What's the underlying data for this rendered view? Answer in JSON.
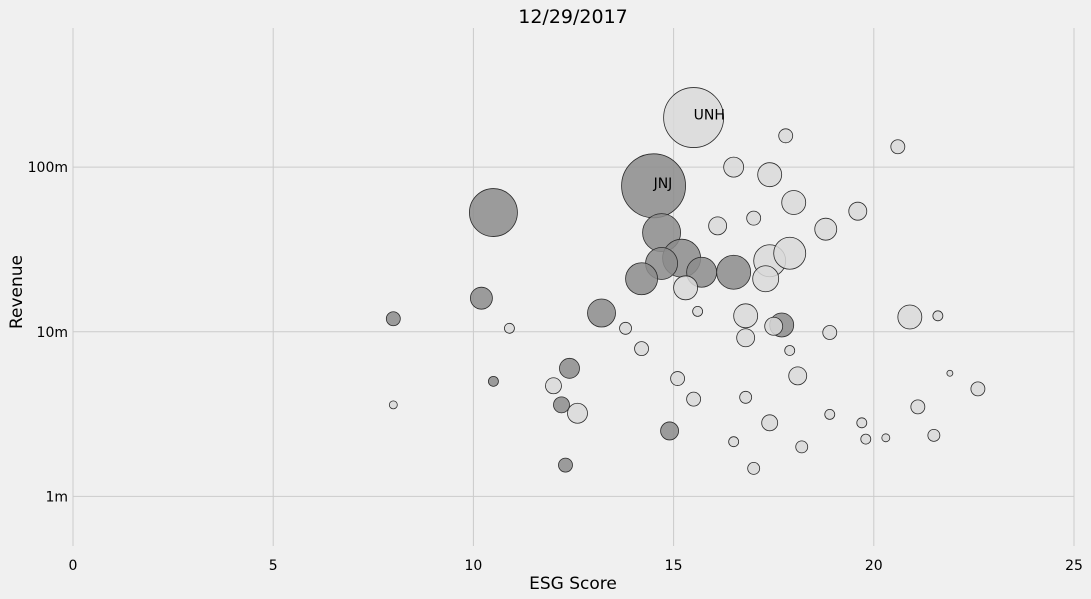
{
  "chart_data": {
    "type": "scatter",
    "title": "12/29/2017",
    "xlabel": "ESG Score",
    "ylabel": "Revenue",
    "xlim": [
      0,
      25
    ],
    "ylim": [
      500000,
      700000000
    ],
    "yscale": "log",
    "grid": true,
    "x_ticks": [
      {
        "value": 0,
        "label": "0"
      },
      {
        "value": 5,
        "label": "5"
      },
      {
        "value": 10,
        "label": "10"
      },
      {
        "value": 15,
        "label": "15"
      },
      {
        "value": 20,
        "label": "20"
      },
      {
        "value": 25,
        "label": "25"
      }
    ],
    "y_ticks": [
      {
        "value": 1000000,
        "label": "1m"
      },
      {
        "value": 10000000,
        "label": "10m"
      },
      {
        "value": 100000000,
        "label": "100m"
      }
    ],
    "colors": {
      "dark": "#8c8c8c",
      "light": "#d9d9d9",
      "background": "#f0f0f0",
      "grid": "#cbcbcb"
    },
    "points": [
      {
        "x": 15.5,
        "y": 200000000,
        "size": 30,
        "tone": "light",
        "label": "UNH"
      },
      {
        "x": 14.5,
        "y": 77000000,
        "size": 32,
        "tone": "dark",
        "label": "JNJ"
      },
      {
        "x": 10.5,
        "y": 53000000,
        "size": 24,
        "tone": "dark"
      },
      {
        "x": 14.7,
        "y": 40000000,
        "size": 19,
        "tone": "dark"
      },
      {
        "x": 15.2,
        "y": 28000000,
        "size": 19,
        "tone": "dark"
      },
      {
        "x": 14.7,
        "y": 26000000,
        "size": 16,
        "tone": "dark"
      },
      {
        "x": 15.7,
        "y": 23000000,
        "size": 15,
        "tone": "dark"
      },
      {
        "x": 16.5,
        "y": 23000000,
        "size": 17,
        "tone": "dark"
      },
      {
        "x": 14.2,
        "y": 21000000,
        "size": 16,
        "tone": "dark"
      },
      {
        "x": 17.4,
        "y": 27000000,
        "size": 16,
        "tone": "light"
      },
      {
        "x": 17.9,
        "y": 30000000,
        "size": 16,
        "tone": "light"
      },
      {
        "x": 17.3,
        "y": 21000000,
        "size": 13,
        "tone": "light"
      },
      {
        "x": 15.3,
        "y": 18500000,
        "size": 12,
        "tone": "light"
      },
      {
        "x": 17.8,
        "y": 155000000,
        "size": 7,
        "tone": "light"
      },
      {
        "x": 20.6,
        "y": 133000000,
        "size": 7,
        "tone": "light"
      },
      {
        "x": 16.5,
        "y": 100000000,
        "size": 10,
        "tone": "light"
      },
      {
        "x": 17.4,
        "y": 90000000,
        "size": 12,
        "tone": "light"
      },
      {
        "x": 18.0,
        "y": 61000000,
        "size": 12,
        "tone": "light"
      },
      {
        "x": 19.6,
        "y": 54000000,
        "size": 9,
        "tone": "light"
      },
      {
        "x": 17.0,
        "y": 49000000,
        "size": 7,
        "tone": "light"
      },
      {
        "x": 16.1,
        "y": 44000000,
        "size": 9,
        "tone": "light"
      },
      {
        "x": 18.8,
        "y": 42000000,
        "size": 11,
        "tone": "light"
      },
      {
        "x": 10.2,
        "y": 16000000,
        "size": 11,
        "tone": "dark"
      },
      {
        "x": 8.0,
        "y": 12000000,
        "size": 7,
        "tone": "dark"
      },
      {
        "x": 10.9,
        "y": 10500000,
        "size": 5,
        "tone": "light"
      },
      {
        "x": 13.2,
        "y": 13000000,
        "size": 14,
        "tone": "dark"
      },
      {
        "x": 13.8,
        "y": 10500000,
        "size": 6,
        "tone": "light"
      },
      {
        "x": 15.6,
        "y": 13300000,
        "size": 5,
        "tone": "light"
      },
      {
        "x": 16.8,
        "y": 12500000,
        "size": 12,
        "tone": "light"
      },
      {
        "x": 17.5,
        "y": 10800000,
        "size": 9,
        "tone": "light"
      },
      {
        "x": 17.7,
        "y": 11000000,
        "size": 12,
        "tone": "dark"
      },
      {
        "x": 16.8,
        "y": 9200000,
        "size": 9,
        "tone": "light"
      },
      {
        "x": 18.9,
        "y": 9900000,
        "size": 7,
        "tone": "light"
      },
      {
        "x": 20.9,
        "y": 12300000,
        "size": 12,
        "tone": "light"
      },
      {
        "x": 21.6,
        "y": 12500000,
        "size": 5,
        "tone": "light"
      },
      {
        "x": 14.2,
        "y": 7900000,
        "size": 7,
        "tone": "light"
      },
      {
        "x": 17.9,
        "y": 7700000,
        "size": 5,
        "tone": "light"
      },
      {
        "x": 12.4,
        "y": 6000000,
        "size": 10,
        "tone": "dark"
      },
      {
        "x": 10.5,
        "y": 5000000,
        "size": 5,
        "tone": "dark"
      },
      {
        "x": 12.0,
        "y": 4700000,
        "size": 8,
        "tone": "light"
      },
      {
        "x": 15.1,
        "y": 5200000,
        "size": 7,
        "tone": "light"
      },
      {
        "x": 18.1,
        "y": 5400000,
        "size": 9,
        "tone": "light"
      },
      {
        "x": 21.9,
        "y": 5600000,
        "size": 3,
        "tone": "light"
      },
      {
        "x": 22.6,
        "y": 4500000,
        "size": 7,
        "tone": "light"
      },
      {
        "x": 8.0,
        "y": 3600000,
        "size": 4,
        "tone": "light"
      },
      {
        "x": 12.2,
        "y": 3600000,
        "size": 8,
        "tone": "dark"
      },
      {
        "x": 12.6,
        "y": 3200000,
        "size": 10,
        "tone": "light"
      },
      {
        "x": 15.5,
        "y": 3900000,
        "size": 7,
        "tone": "light"
      },
      {
        "x": 16.8,
        "y": 4000000,
        "size": 6,
        "tone": "light"
      },
      {
        "x": 21.1,
        "y": 3500000,
        "size": 7,
        "tone": "light"
      },
      {
        "x": 18.9,
        "y": 3150000,
        "size": 5,
        "tone": "light"
      },
      {
        "x": 17.4,
        "y": 2800000,
        "size": 8,
        "tone": "light"
      },
      {
        "x": 19.7,
        "y": 2800000,
        "size": 5,
        "tone": "light"
      },
      {
        "x": 14.9,
        "y": 2500000,
        "size": 9,
        "tone": "dark"
      },
      {
        "x": 16.5,
        "y": 2150000,
        "size": 5,
        "tone": "light"
      },
      {
        "x": 19.8,
        "y": 2230000,
        "size": 5,
        "tone": "light"
      },
      {
        "x": 20.3,
        "y": 2270000,
        "size": 4,
        "tone": "light"
      },
      {
        "x": 21.5,
        "y": 2350000,
        "size": 6,
        "tone": "light"
      },
      {
        "x": 18.2,
        "y": 2000000,
        "size": 6,
        "tone": "light"
      },
      {
        "x": 12.3,
        "y": 1550000,
        "size": 7,
        "tone": "dark"
      },
      {
        "x": 17.0,
        "y": 1480000,
        "size": 6,
        "tone": "light"
      }
    ]
  }
}
